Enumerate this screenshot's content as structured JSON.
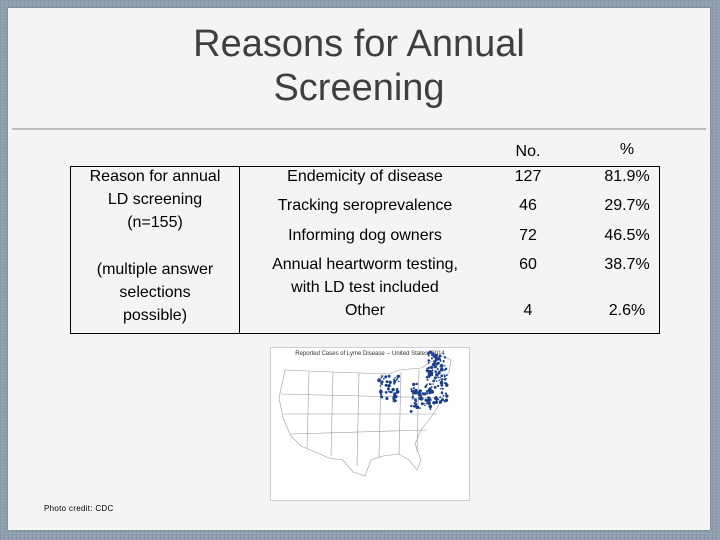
{
  "slide": {
    "title_line1": "Reasons for Annual",
    "title_line2": "Screening",
    "photo_credit": "Photo credit: CDC"
  },
  "table": {
    "headers": {
      "no": "No.",
      "pct": "%"
    },
    "left_label": {
      "line1": "Reason for annual",
      "line2": "LD screening",
      "line3": "(n=155)",
      "line4": "(multiple answer",
      "line5": "selections",
      "line6": "possible)"
    },
    "rows": [
      {
        "reason": "Endemicity of disease",
        "no": "127",
        "pct": "81.9%"
      },
      {
        "reason": "Tracking seroprevalence",
        "no": "46",
        "pct": "29.7%"
      },
      {
        "reason": "Informing dog owners",
        "no": "72",
        "pct": "46.5%"
      },
      {
        "reason_line1": "Annual heartworm testing,",
        "reason_line2": "with LD test included",
        "no": "60",
        "pct": "38.7%"
      },
      {
        "reason": "Other",
        "no": "4",
        "pct": "2.6%"
      }
    ]
  },
  "map": {
    "caption": "Reported Cases of Lyme Disease -- United States, 2014",
    "colors": {
      "outline": "#9a9a9a",
      "cases": "#1c3f8a"
    }
  }
}
